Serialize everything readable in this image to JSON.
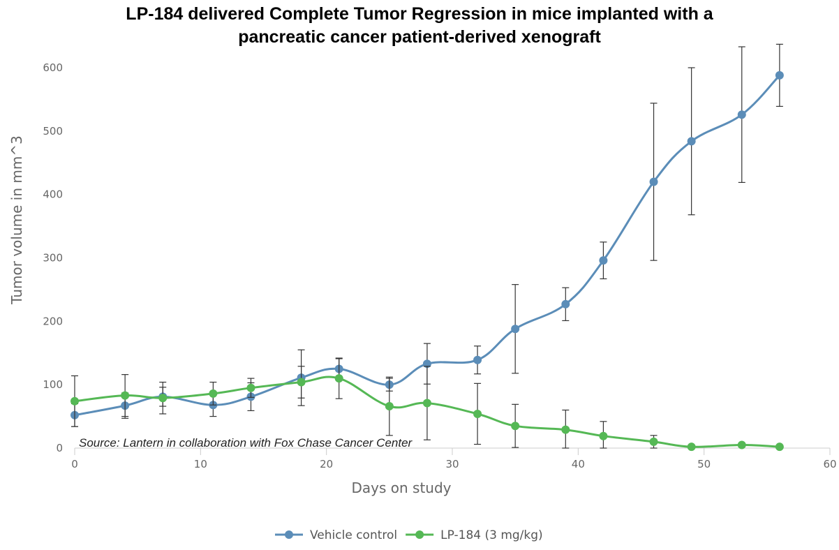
{
  "chart_data": {
    "type": "line",
    "title_lines": [
      "LP-184 delivered Complete Tumor Regression in mice implanted with a",
      "pancreatic cancer patient-derived xenograft"
    ],
    "xlabel": "Days on study",
    "ylabel": "Tumor volume in mm^3",
    "xlim": [
      0,
      60
    ],
    "ylim": [
      0,
      650
    ],
    "xticks": [
      0,
      10,
      20,
      30,
      40,
      50,
      60
    ],
    "yticks": [
      0,
      100,
      200,
      300,
      400,
      500,
      600
    ],
    "grid": false,
    "legend_position": "bottom-center",
    "annotation": "Source: Lantern in collaboration with Fox Chase Cancer Center",
    "series": [
      {
        "name": "Vehicle control",
        "color": "#5b8db8",
        "x": [
          0,
          4,
          7,
          11,
          14,
          18,
          21,
          25,
          28,
          32,
          35,
          39,
          42,
          46,
          49,
          53,
          56
        ],
        "y": [
          52,
          67,
          81,
          68,
          81,
          111,
          125,
          100,
          133,
          139,
          188,
          227,
          296,
          420,
          484,
          526,
          588
        ],
        "error": [
          18,
          20,
          15,
          18,
          22,
          44,
          16,
          10,
          32,
          22,
          70,
          26,
          29,
          124,
          116,
          107,
          49
        ]
      },
      {
        "name": "LP-184 (3 mg/kg)",
        "color": "#55b855",
        "x": [
          0,
          4,
          7,
          11,
          14,
          18,
          21,
          25,
          28,
          32,
          35,
          39,
          42,
          46,
          49,
          53,
          56
        ],
        "y": [
          74,
          83,
          79,
          86,
          95,
          104,
          110,
          66,
          71,
          54,
          35,
          29,
          19,
          10,
          2,
          5,
          2
        ],
        "error": [
          40,
          33,
          25,
          18,
          15,
          25,
          32,
          46,
          58,
          48,
          34,
          31,
          23,
          10,
          0,
          0,
          0
        ]
      }
    ]
  }
}
